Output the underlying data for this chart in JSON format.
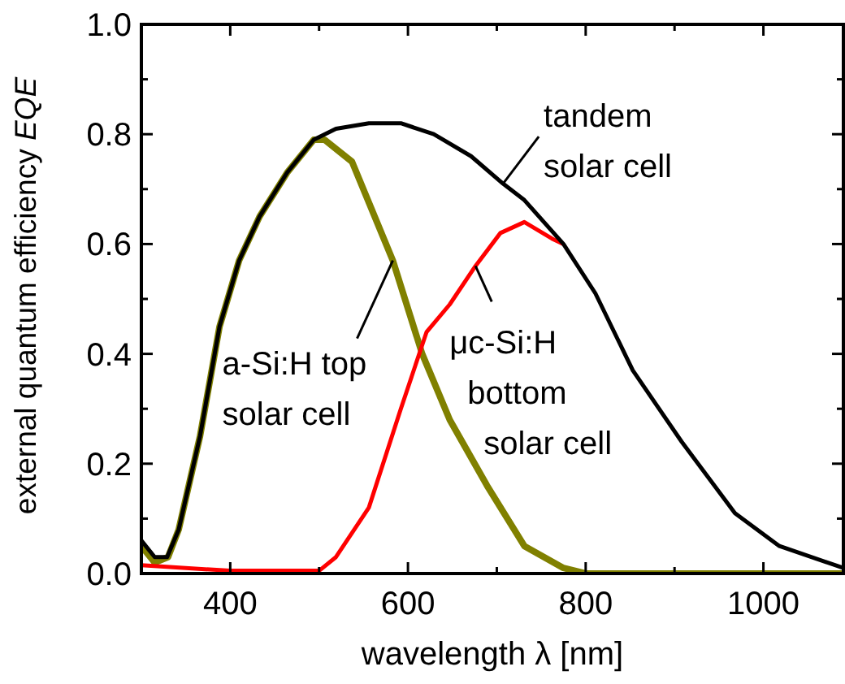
{
  "chart_data": {
    "type": "line",
    "xlabel": "wavelength λ [nm]",
    "ylabel": "external quantum efficiency EQE",
    "xlim": [
      300,
      1090
    ],
    "ylim": [
      0,
      1
    ],
    "xticks": [
      {
        "value": 400,
        "label": "400"
      },
      {
        "value": 500,
        "label": null
      },
      {
        "value": 600,
        "label": "600"
      },
      {
        "value": 700,
        "label": null
      },
      {
        "value": 800,
        "label": "800"
      },
      {
        "value": 900,
        "label": null
      },
      {
        "value": 1000,
        "label": "1000"
      }
    ],
    "yticks": [
      {
        "value": 0,
        "label": "0.0"
      },
      {
        "value": 0.1,
        "label": null
      },
      {
        "value": 0.2,
        "label": "0.2"
      },
      {
        "value": 0.3,
        "label": null
      },
      {
        "value": 0.4,
        "label": "0.4"
      },
      {
        "value": 0.5,
        "label": null
      },
      {
        "value": 0.6,
        "label": "0.6"
      },
      {
        "value": 0.7,
        "label": null
      },
      {
        "value": 0.8,
        "label": "0.8"
      },
      {
        "value": 0.9,
        "label": null
      },
      {
        "value": 1,
        "label": "1.0"
      }
    ],
    "grid": false,
    "marker": "none",
    "line_style": "solid",
    "series": [
      {
        "color": "#808000",
        "x": [
          300,
          315,
          330,
          342,
          366,
          388,
          410,
          433,
          464,
          494,
          506,
          537,
          583,
          616,
          647,
          689,
          731,
          775,
          800,
          900,
          1000,
          1090
        ],
        "values": [
          0.05,
          0.02,
          0.03,
          0.08,
          0.25,
          0.45,
          0.57,
          0.65,
          0.73,
          0.79,
          0.79,
          0.75,
          0.57,
          0.4,
          0.28,
          0.16,
          0.05,
          0.01,
          0,
          0,
          0,
          0
        ]
      },
      {
        "color": "#ff0000",
        "x": [
          300,
          400,
          500,
          519,
          556,
          592,
          621,
          647,
          676,
          704,
          731,
          762,
          775
        ],
        "values": [
          0.015,
          0.005,
          0.005,
          0.03,
          0.12,
          0.3,
          0.44,
          0.49,
          0.56,
          0.62,
          0.64,
          0.61,
          0.6
        ]
      },
      {
        "color": "#000000",
        "x": [
          300,
          315,
          329,
          342,
          366,
          388,
          410,
          433,
          464,
          494,
          519,
          556,
          592,
          629,
          671,
          707,
          731,
          775,
          811,
          853,
          908,
          968,
          1018,
          1090
        ],
        "values": [
          0.06,
          0.03,
          0.03,
          0.08,
          0.25,
          0.45,
          0.57,
          0.65,
          0.73,
          0.79,
          0.81,
          0.82,
          0.82,
          0.8,
          0.76,
          0.71,
          0.68,
          0.6,
          0.51,
          0.37,
          0.24,
          0.11,
          0.05,
          0.01
        ]
      }
    ],
    "annotations": [
      {
        "text": "a-Si:H top solar cell",
        "x": 583,
        "y": 0.57
      },
      {
        "text": "μc-Si:H bottom solar cell",
        "x": 676,
        "y": 0.56
      },
      {
        "text": "tandem solar cell",
        "x": 707,
        "y": 0.71
      }
    ]
  }
}
